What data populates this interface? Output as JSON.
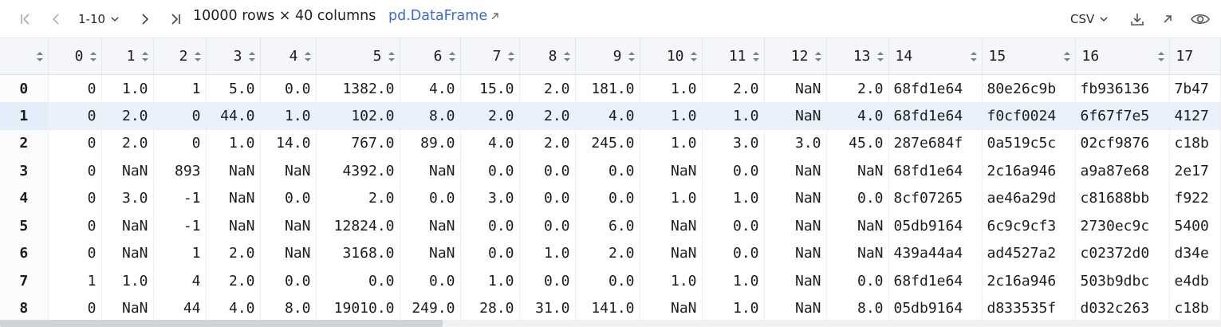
{
  "toolbar": {
    "first_page_icon": "first-page-icon",
    "prev_page_icon": "prev-page-icon",
    "range": "1-10",
    "next_page_icon": "next-page-icon",
    "last_page_icon": "last-page-icon",
    "shape": "10000 rows × 40 columns",
    "type_link": "pd.DataFrame",
    "export_format": "CSV",
    "download_icon": "download-icon",
    "open_external_icon": "open-external-icon",
    "eye_icon": "eye-icon"
  },
  "table": {
    "columns": [
      "0",
      "1",
      "2",
      "3",
      "4",
      "5",
      "6",
      "7",
      "8",
      "9",
      "10",
      "11",
      "12",
      "13",
      "14",
      "15",
      "16",
      "17"
    ],
    "rows": [
      {
        "index": "0",
        "cells": [
          "0",
          "1.0",
          "1",
          "5.0",
          "0.0",
          "1382.0",
          "4.0",
          "15.0",
          "2.0",
          "181.0",
          "1.0",
          "2.0",
          "NaN",
          "2.0",
          "68fd1e64",
          "80e26c9b",
          "fb936136",
          "7b47"
        ]
      },
      {
        "index": "1",
        "cells": [
          "0",
          "2.0",
          "0",
          "44.0",
          "1.0",
          "102.0",
          "8.0",
          "2.0",
          "2.0",
          "4.0",
          "1.0",
          "1.0",
          "NaN",
          "4.0",
          "68fd1e64",
          "f0cf0024",
          "6f67f7e5",
          "4127"
        ]
      },
      {
        "index": "2",
        "cells": [
          "0",
          "2.0",
          "0",
          "1.0",
          "14.0",
          "767.0",
          "89.0",
          "4.0",
          "2.0",
          "245.0",
          "1.0",
          "3.0",
          "3.0",
          "45.0",
          "287e684f",
          "0a519c5c",
          "02cf9876",
          "c18b"
        ]
      },
      {
        "index": "3",
        "cells": [
          "0",
          "NaN",
          "893",
          "NaN",
          "NaN",
          "4392.0",
          "NaN",
          "0.0",
          "0.0",
          "0.0",
          "NaN",
          "0.0",
          "NaN",
          "NaN",
          "68fd1e64",
          "2c16a946",
          "a9a87e68",
          "2e17"
        ]
      },
      {
        "index": "4",
        "cells": [
          "0",
          "3.0",
          "-1",
          "NaN",
          "0.0",
          "2.0",
          "0.0",
          "3.0",
          "0.0",
          "0.0",
          "1.0",
          "1.0",
          "NaN",
          "0.0",
          "8cf07265",
          "ae46a29d",
          "c81688bb",
          "f922"
        ]
      },
      {
        "index": "5",
        "cells": [
          "0",
          "NaN",
          "-1",
          "NaN",
          "NaN",
          "12824.0",
          "NaN",
          "0.0",
          "0.0",
          "6.0",
          "NaN",
          "0.0",
          "NaN",
          "NaN",
          "05db9164",
          "6c9c9cf3",
          "2730ec9c",
          "5400"
        ]
      },
      {
        "index": "6",
        "cells": [
          "0",
          "NaN",
          "1",
          "2.0",
          "NaN",
          "3168.0",
          "NaN",
          "0.0",
          "1.0",
          "2.0",
          "NaN",
          "0.0",
          "NaN",
          "NaN",
          "439a44a4",
          "ad4527a2",
          "c02372d0",
          "d34e"
        ]
      },
      {
        "index": "7",
        "cells": [
          "1",
          "1.0",
          "4",
          "2.0",
          "0.0",
          "0.0",
          "0.0",
          "1.0",
          "0.0",
          "0.0",
          "1.0",
          "1.0",
          "NaN",
          "0.0",
          "68fd1e64",
          "2c16a946",
          "503b9dbc",
          "e4db"
        ]
      },
      {
        "index": "8",
        "cells": [
          "0",
          "NaN",
          "44",
          "4.0",
          "8.0",
          "19010.0",
          "249.0",
          "28.0",
          "31.0",
          "141.0",
          "NaN",
          "1.0",
          "NaN",
          "8.0",
          "05db9164",
          "d833535f",
          "d032c263",
          "c18b"
        ]
      }
    ],
    "selected_row": 1
  }
}
